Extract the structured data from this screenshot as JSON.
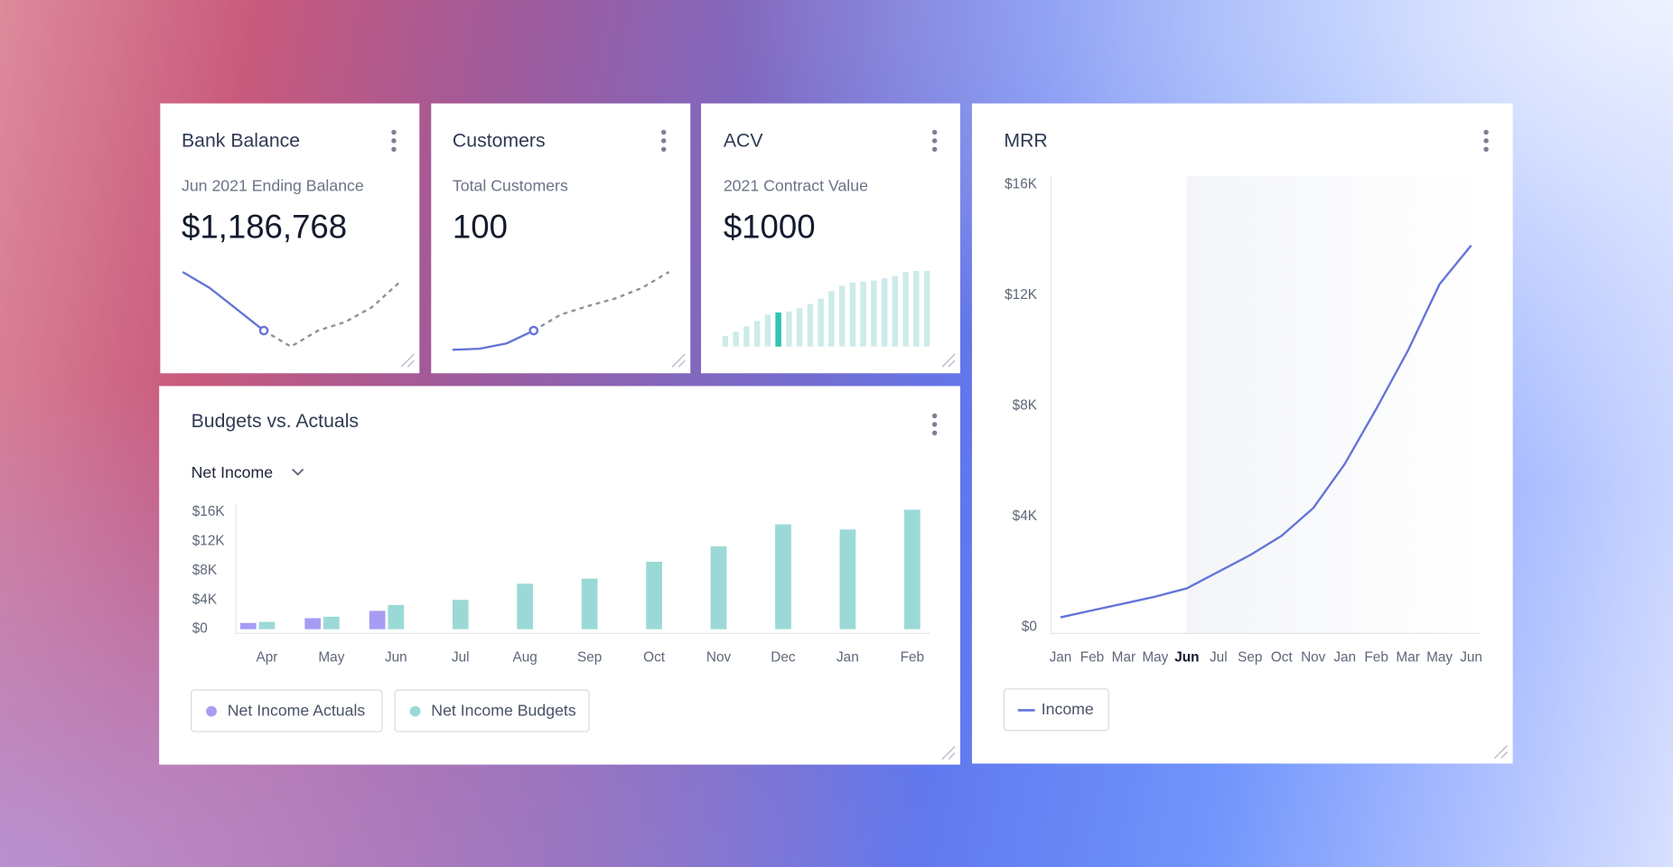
{
  "cards": [
    {
      "title": "Bank Balance",
      "subtitle": "Jun 2021 Ending Balance",
      "value": "$1,186,768",
      "sparkline": {
        "type": "line",
        "marker_index": 3,
        "series": [
          {
            "color": "#6574d8",
            "dashed": false,
            "values": [
              75,
              60,
              40,
              20,
              null,
              null,
              null,
              null,
              null
            ]
          },
          {
            "color": "#8c919c",
            "dashed": true,
            "values": [
              null,
              null,
              null,
              20,
              5,
              20,
              28,
              42,
              65
            ]
          }
        ]
      }
    },
    {
      "title": "Customers",
      "subtitle": "Total Customers",
      "value": "100",
      "sparkline": {
        "type": "line",
        "marker_index": 3,
        "series": [
          {
            "color": "#6574d8",
            "dashed": false,
            "values": [
              2,
              3,
              8,
              20,
              null,
              null,
              null,
              null,
              null
            ]
          },
          {
            "color": "#8c919c",
            "dashed": true,
            "values": [
              null,
              null,
              null,
              20,
              35,
              43,
              50,
              60,
              75
            ]
          }
        ]
      }
    },
    {
      "title": "ACV",
      "subtitle": "2021 Contract Value",
      "value": "$1000",
      "sparkline": {
        "type": "bar",
        "color": "#cdebea",
        "highlight_color": "#2ec4b6",
        "highlight_index": 5,
        "values": [
          10,
          14,
          19,
          24,
          30,
          32,
          33,
          36,
          40,
          45,
          52,
          57,
          60,
          61,
          62,
          64,
          66,
          70,
          71,
          71
        ]
      }
    }
  ],
  "chart_data": [
    {
      "type": "bar",
      "title": "Budgets vs. Actuals",
      "dropdown": "Net Income",
      "categories": [
        "Apr",
        "May",
        "Jun",
        "Jul",
        "Aug",
        "Sep",
        "Oct",
        "Nov",
        "Dec",
        "Jan",
        "Feb"
      ],
      "series": [
        {
          "name": "Net Income Actuals",
          "color": "#a79cf3",
          "values": [
            850,
            1500,
            2500,
            null,
            null,
            null,
            null,
            null,
            null,
            null,
            null
          ]
        },
        {
          "name": "Net Income Budgets",
          "color": "#9bd9d7",
          "values": [
            1000,
            1700,
            3300,
            4000,
            6200,
            6900,
            9200,
            11300,
            14300,
            13600,
            16300
          ]
        }
      ],
      "ylim": [
        0,
        16000
      ],
      "yticks": [
        {
          "value": 0,
          "label": "$0"
        },
        {
          "value": 4000,
          "label": "$4K"
        },
        {
          "value": 8000,
          "label": "$8K"
        },
        {
          "value": 12000,
          "label": "$12K"
        },
        {
          "value": 16000,
          "label": "$16K"
        }
      ]
    },
    {
      "type": "line",
      "title": "MRR",
      "highlight_index": 4,
      "categories": [
        "Jan",
        "Feb",
        "Mar",
        "May",
        "Jun",
        "Jul",
        "Sep",
        "Oct",
        "Nov",
        "Jan",
        "Feb",
        "Mar",
        "May",
        "Jun"
      ],
      "series": [
        {
          "name": "Income",
          "color": "#6574d8",
          "values": [
            350,
            600,
            850,
            1100,
            1400,
            2000,
            2600,
            3300,
            4300,
            5900,
            7900,
            10000,
            12400,
            13800
          ]
        }
      ],
      "ylim": [
        0,
        16000
      ],
      "yticks": [
        {
          "value": 0,
          "label": "$0"
        },
        {
          "value": 4000,
          "label": "$4K"
        },
        {
          "value": 8000,
          "label": "$8K"
        },
        {
          "value": 12000,
          "label": "$12K"
        },
        {
          "value": 16000,
          "label": "$16K"
        }
      ]
    }
  ]
}
